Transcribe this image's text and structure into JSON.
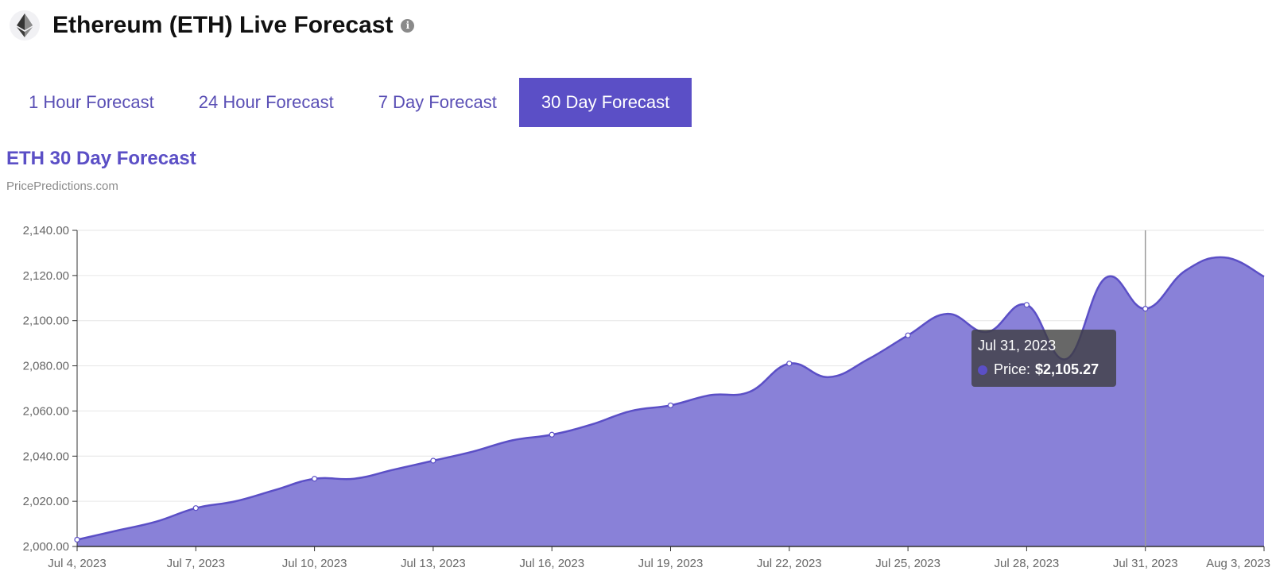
{
  "header": {
    "title": "Ethereum (ETH) Live Forecast",
    "info_icon": "info-icon",
    "logo_icon": "ethereum-icon"
  },
  "tabs": [
    {
      "label": "1 Hour Forecast",
      "active": false
    },
    {
      "label": "24 Hour Forecast",
      "active": false
    },
    {
      "label": "7 Day Forecast",
      "active": false
    },
    {
      "label": "30 Day Forecast",
      "active": true
    }
  ],
  "chart": {
    "title": "ETH 30 Day Forecast",
    "subtitle": "PricePredictions.com"
  },
  "tooltip": {
    "date": "Jul 31, 2023",
    "label": "Price:",
    "value": "$2,105.27"
  },
  "colors": {
    "accent": "#5b4fc6",
    "area_fill": "#8981d8",
    "line": "#5b4fc6"
  },
  "chart_data": {
    "type": "area",
    "title": "ETH 30 Day Forecast",
    "xlabel": "",
    "ylabel": "",
    "ylim": [
      2000,
      2140
    ],
    "y_ticks": [
      2000,
      2020,
      2040,
      2060,
      2080,
      2100,
      2120,
      2140
    ],
    "y_tick_labels": [
      "2,000.00",
      "2,020.00",
      "2,040.00",
      "2,060.00",
      "2,080.00",
      "2,100.00",
      "2,120.00",
      "2,140.00"
    ],
    "x_tick_labels": [
      "Jul 4, 2023",
      "Jul 7, 2023",
      "Jul 10, 2023",
      "Jul 13, 2023",
      "Jul 16, 2023",
      "Jul 19, 2023",
      "Jul 22, 2023",
      "Jul 25, 2023",
      "Jul 28, 2023",
      "Jul 31, 2023",
      "Aug 3, 2023"
    ],
    "x_tick_days": [
      0,
      3,
      6,
      9,
      12,
      15,
      18,
      21,
      24,
      27,
      30
    ],
    "series": [
      {
        "name": "Price",
        "x": [
          0,
          1,
          2,
          3,
          4,
          5,
          6,
          7,
          8,
          9,
          10,
          11,
          12,
          13,
          14,
          15,
          16,
          17,
          18,
          19,
          20,
          21,
          22,
          23,
          24,
          25,
          26,
          27,
          28,
          29,
          30
        ],
        "values": [
          2003,
          2007,
          2011,
          2017,
          2020,
          2025,
          2030,
          2030,
          2034,
          2038,
          2042,
          2047,
          2049.5,
          2054,
          2060,
          2062.5,
          2067,
          2068.5,
          2081,
          2075,
          2083,
          2093.5,
          2103,
          2095,
          2107,
          2083,
          2119,
          2105.27,
          2122,
          2128,
          2119.5
        ]
      }
    ],
    "markers_at": [
      0,
      3,
      6,
      9,
      12,
      15,
      18,
      21,
      24,
      27
    ],
    "highlight_x": 27
  }
}
